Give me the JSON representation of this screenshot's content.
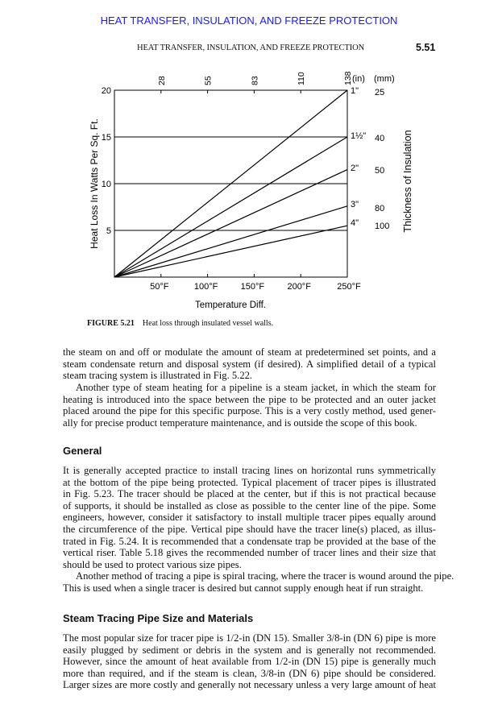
{
  "header": {
    "banner": "HEAT TRANSFER, INSULATION, AND FREEZE PROTECTION",
    "running_head": "HEAT TRANSFER, INSULATION, AND FREEZE PROTECTION",
    "page_number": "5.51"
  },
  "figure": {
    "caption_label": "FIGURE 5.21",
    "caption_text": "Heat loss through insulated vessel walls."
  },
  "chart_data": {
    "type": "line",
    "xlabel": "Temperature Diff.",
    "ylabel": "Heat Loss In Watts Per Sq. Ft.",
    "right_label": "Thickness of Insulation",
    "xlim": [
      0,
      250
    ],
    "ylim": [
      0,
      20
    ],
    "x_ticks": [
      50,
      100,
      150,
      200,
      250
    ],
    "x_tick_labels": [
      "50°F",
      "100°F",
      "150°F",
      "200°F",
      "250°F"
    ],
    "top_tick_labels": [
      "28",
      "55",
      "83",
      "110",
      "138"
    ],
    "y_ticks": [
      5,
      10,
      15,
      20
    ],
    "y_tick_labels": [
      "5",
      "10",
      "15",
      "20"
    ],
    "grid": "horizontal",
    "unit_in": "(in)",
    "unit_mm": "(mm)",
    "series": [
      {
        "name": "1\"",
        "mm": "25",
        "x": [
          0,
          250
        ],
        "y": [
          0,
          20
        ]
      },
      {
        "name": "1½\"",
        "mm": "40",
        "x": [
          0,
          250
        ],
        "y": [
          0,
          15
        ]
      },
      {
        "name": "2\"",
        "mm": "50",
        "x": [
          0,
          250
        ],
        "y": [
          0,
          11.5
        ]
      },
      {
        "name": "3\"",
        "mm": "80",
        "x": [
          0,
          250
        ],
        "y": [
          0,
          7.6
        ]
      },
      {
        "name": "4\"",
        "mm": "100",
        "x": [
          0,
          250
        ],
        "y": [
          0,
          5.5
        ]
      }
    ]
  },
  "body": {
    "p1": [
      "the steam on and off or modulate the amount of steam at predetermined set points, and a",
      "steam condensate return and disposal system (if desired). A simplified detail of a typical",
      "steam tracing system is illustrated in Fig. 5.22."
    ],
    "p2": [
      "Another type of steam heating for a pipeline is a steam jacket, in which the steam for",
      "heating is introduced into the space between the pipe to be protected and an outer jacket",
      "placed around the pipe for this specific purpose. This is a very costly method, used gener-",
      "ally for precise product temperature maintenance, and is outside the scope of this book."
    ],
    "h1": "General",
    "p3": [
      "It is generally accepted practice to install tracing lines on horizontal runs symmetrically",
      "at the bottom of the pipe being protected. Typical placement of tracer pipes is illustrated",
      "in Fig. 5.23. The tracer should be placed at the center, but if this is not practical because",
      "of supports, it should be installed as close as possible to the center line of the pipe. Some",
      "engineers, however, consider it satisfactory to install multiple tracer pipes equally around",
      "the circumference of the pipe. Vertical pipe should have the tracer line(s) placed, as illus-",
      "trated in Fig. 5.24. It is recommended that a condensate trap be provided at the base of the",
      "vertical riser. Table 5.18 gives the recommended number of tracer lines and their size that",
      "should be used to protect various size pipes."
    ],
    "p4": [
      "Another method of tracing a pipe is spiral tracing, where the tracer is wound around the pipe.",
      "This is used when a single tracer is desired but cannot supply enough heat if run straight."
    ],
    "h2": "Steam Tracing Pipe Size and Materials",
    "p5": [
      "The most popular size for tracer pipe is 1/2-in (DN 15). Smaller 3/8-in (DN 6) pipe is more",
      "easily plugged by sediment or debris in the system and is generally not recommended.",
      "However, since the amount of heat available from 1/2-in (DN 15) pipe is generally much",
      "more than required, and if the steam is clean, 3/8-in (DN 6) pipe should be considered.",
      "Larger sizes are more costly and generally not necessary unless a very large amount of heat"
    ]
  }
}
